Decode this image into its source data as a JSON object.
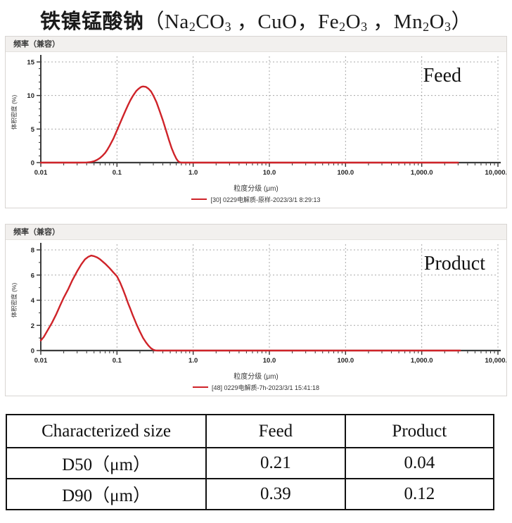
{
  "title": {
    "chinese": "铁镍锰酸钠",
    "formula_segments": [
      {
        "t": "（Na"
      },
      {
        "s": "2"
      },
      {
        "t": "CO"
      },
      {
        "s": "3"
      },
      {
        "t": " ，CuO，Fe"
      },
      {
        "s": "2"
      },
      {
        "t": "O"
      },
      {
        "s": "3"
      },
      {
        "t": " ，Mn"
      },
      {
        "s": "2"
      },
      {
        "t": "O"
      },
      {
        "s": "3"
      },
      {
        "t": "）"
      }
    ]
  },
  "chart_data": [
    {
      "type": "line",
      "title": "频率（兼容）",
      "annotation": "Feed",
      "xlabel": "粒度分级 (μm)",
      "ylabel": "体积密度 (%)",
      "x_scale": "log",
      "xlim": [
        0.01,
        10000
      ],
      "ylim": [
        0,
        15
      ],
      "yticks": [
        0,
        5,
        10,
        15
      ],
      "y_minor_step": 1,
      "xtick_labels": [
        "0.01",
        "0.1",
        "1.0",
        "10.0",
        "100.0",
        "1,000.0",
        "10,000.0"
      ],
      "grid": "dashed",
      "legend_position": "bottom",
      "line_color": "#cf2329",
      "series": [
        {
          "name": "[30] 0229电解质-原样-2023/3/1 8:29:13",
          "points": [
            [
              0.01,
              0
            ],
            [
              0.03,
              0
            ],
            [
              0.04,
              0.02
            ],
            [
              0.045,
              0.08
            ],
            [
              0.05,
              0.2
            ],
            [
              0.055,
              0.42
            ],
            [
              0.06,
              0.7
            ],
            [
              0.065,
              1.05
            ],
            [
              0.07,
              1.45
            ],
            [
              0.075,
              1.95
            ],
            [
              0.08,
              2.5
            ],
            [
              0.09,
              3.6
            ],
            [
              0.1,
              4.8
            ],
            [
              0.11,
              5.9
            ],
            [
              0.12,
              6.9
            ],
            [
              0.13,
              7.8
            ],
            [
              0.14,
              8.6
            ],
            [
              0.15,
              9.3
            ],
            [
              0.16,
              9.85
            ],
            [
              0.17,
              10.3
            ],
            [
              0.18,
              10.7
            ],
            [
              0.19,
              10.95
            ],
            [
              0.2,
              11.15
            ],
            [
              0.21,
              11.3
            ],
            [
              0.22,
              11.35
            ],
            [
              0.24,
              11.28
            ],
            [
              0.26,
              11.0
            ],
            [
              0.28,
              10.6
            ],
            [
              0.3,
              10.0
            ],
            [
              0.33,
              9.0
            ],
            [
              0.36,
              7.8
            ],
            [
              0.4,
              6.3
            ],
            [
              0.44,
              4.8
            ],
            [
              0.48,
              3.4
            ],
            [
              0.52,
              2.2
            ],
            [
              0.56,
              1.3
            ],
            [
              0.6,
              0.6
            ],
            [
              0.63,
              0.25
            ],
            [
              0.66,
              0.07
            ],
            [
              0.7,
              0
            ],
            [
              1,
              0
            ],
            [
              10,
              0
            ],
            [
              100,
              0
            ],
            [
              1000,
              0
            ],
            [
              3000,
              0
            ]
          ]
        }
      ]
    },
    {
      "type": "line",
      "title": "频率（兼容）",
      "annotation": "Product",
      "xlabel": "粒度分级 (μm)",
      "ylabel": "体积密度 (%)",
      "x_scale": "log",
      "xlim": [
        0.01,
        10000
      ],
      "ylim": [
        0,
        8
      ],
      "yticks": [
        0,
        2,
        4,
        6,
        8
      ],
      "y_minor_step": 1,
      "xtick_labels": [
        "0.01",
        "0.1",
        "1.0",
        "10.0",
        "100.0",
        "1,000.0",
        "10,000.0"
      ],
      "grid": "dashed",
      "legend_position": "bottom",
      "line_color": "#cf2329",
      "series": [
        {
          "name": "[48] 0229电解质-7h-2023/3/1 15:41:18",
          "points": [
            [
              0.01,
              0.8
            ],
            [
              0.011,
              1.1
            ],
            [
              0.012,
              1.5
            ],
            [
              0.014,
              2.2
            ],
            [
              0.016,
              2.9
            ],
            [
              0.018,
              3.6
            ],
            [
              0.02,
              4.2
            ],
            [
              0.023,
              4.9
            ],
            [
              0.026,
              5.6
            ],
            [
              0.03,
              6.3
            ],
            [
              0.034,
              6.85
            ],
            [
              0.038,
              7.25
            ],
            [
              0.042,
              7.45
            ],
            [
              0.046,
              7.55
            ],
            [
              0.05,
              7.5
            ],
            [
              0.055,
              7.4
            ],
            [
              0.06,
              7.25
            ],
            [
              0.07,
              6.9
            ],
            [
              0.08,
              6.55
            ],
            [
              0.09,
              6.2
            ],
            [
              0.1,
              5.9
            ],
            [
              0.11,
              5.4
            ],
            [
              0.12,
              4.85
            ],
            [
              0.13,
              4.3
            ],
            [
              0.14,
              3.75
            ],
            [
              0.15,
              3.3
            ],
            [
              0.16,
              2.85
            ],
            [
              0.18,
              2.1
            ],
            [
              0.2,
              1.5
            ],
            [
              0.22,
              1.0
            ],
            [
              0.24,
              0.65
            ],
            [
              0.26,
              0.38
            ],
            [
              0.28,
              0.18
            ],
            [
              0.3,
              0.06
            ],
            [
              0.32,
              0.01
            ],
            [
              0.34,
              0
            ],
            [
              1,
              0
            ],
            [
              10,
              0
            ],
            [
              100,
              0
            ],
            [
              1000,
              0
            ],
            [
              3200,
              0
            ]
          ]
        }
      ]
    }
  ],
  "table": {
    "headers": [
      "Characterized size",
      "Feed",
      "Product"
    ],
    "rows": [
      [
        "D50（μm）",
        "0.21",
        "0.04"
      ],
      [
        "D90（μm）",
        "0.39",
        "0.12"
      ]
    ]
  }
}
